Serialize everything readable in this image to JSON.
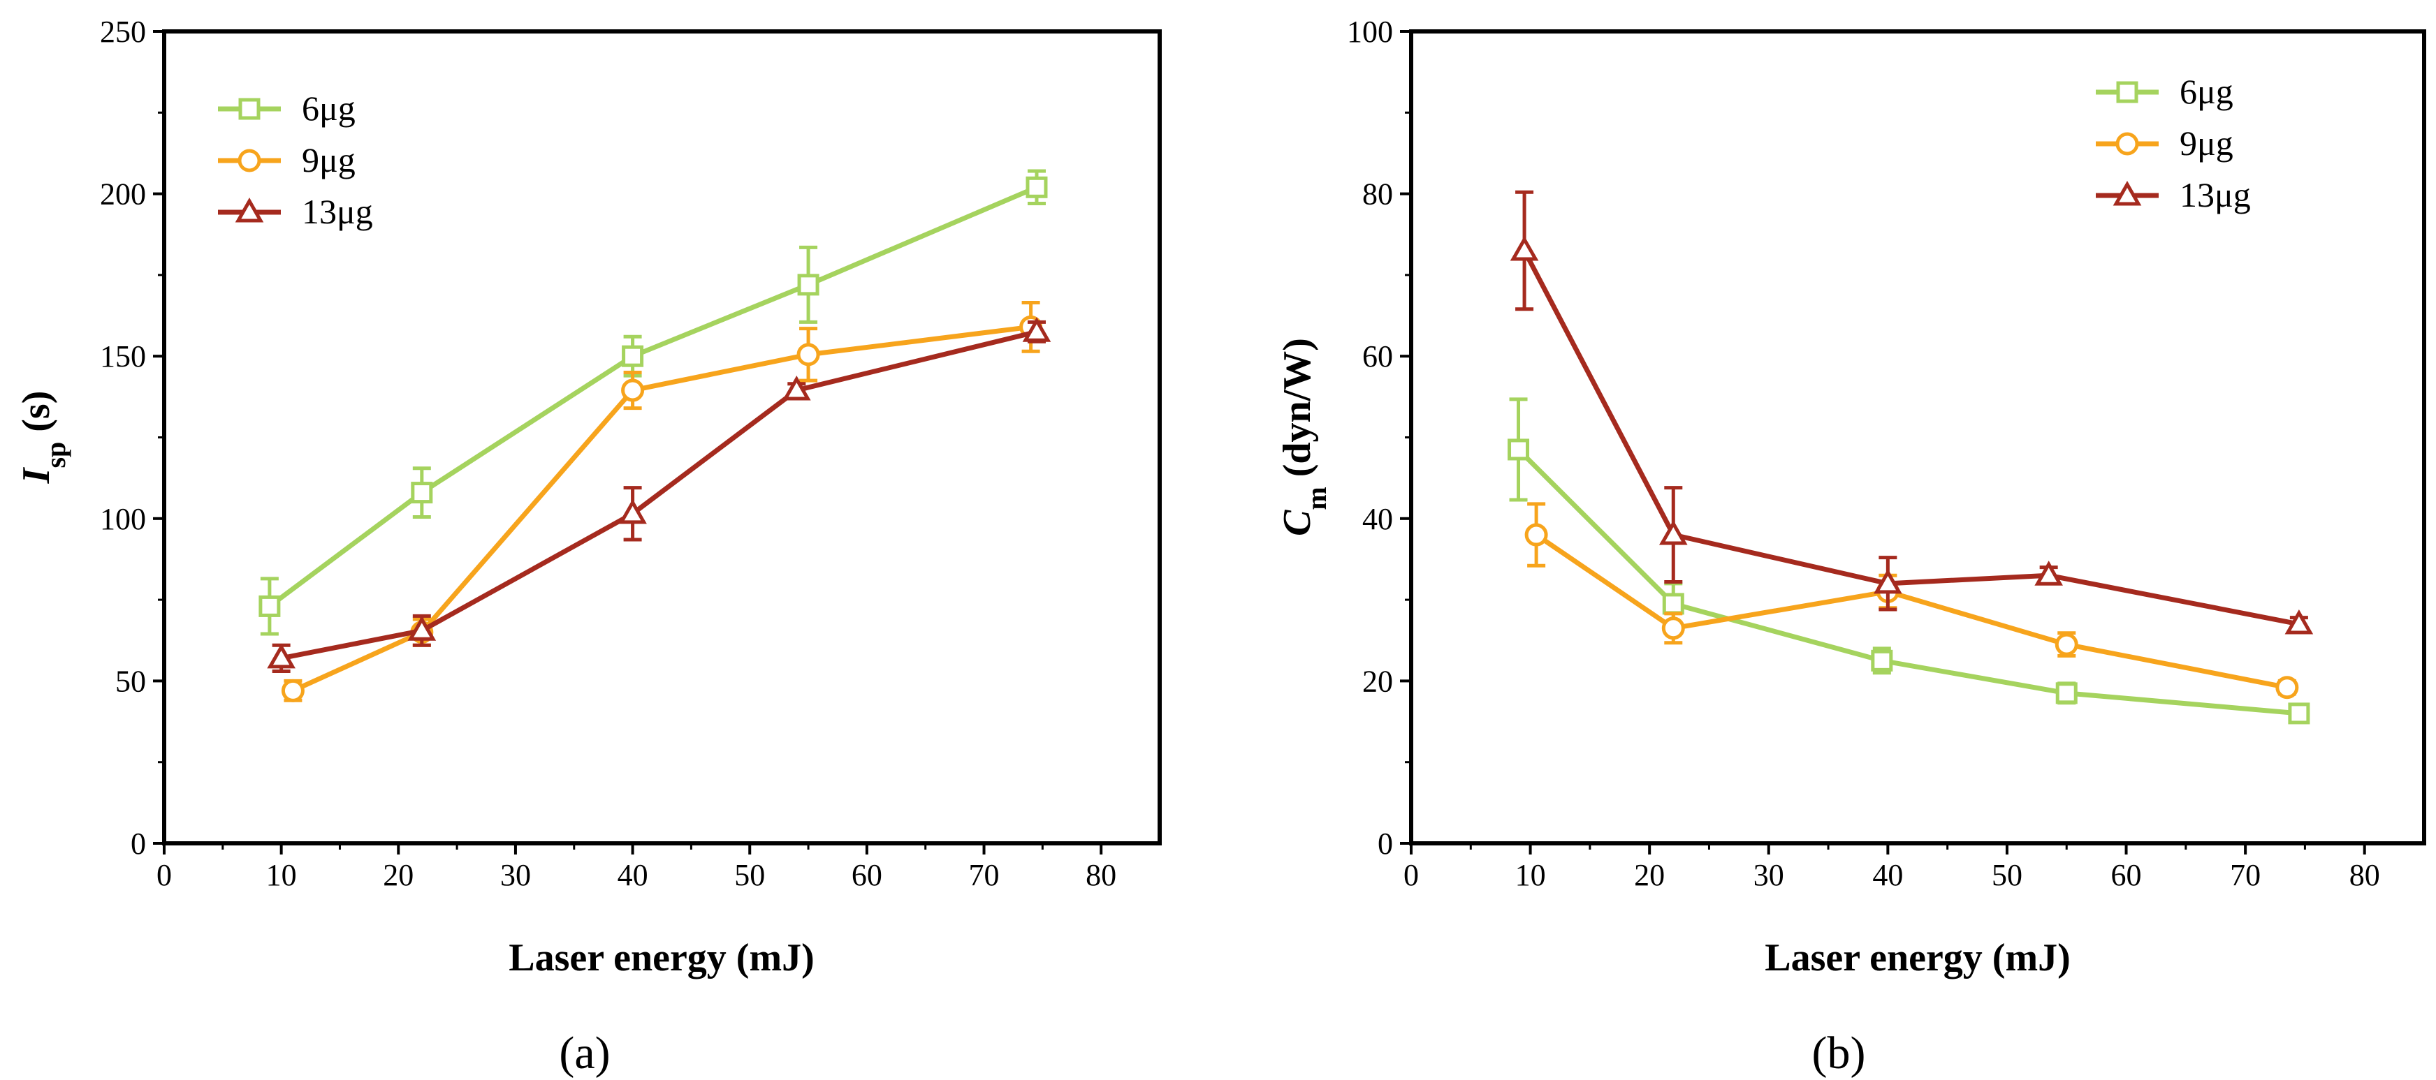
{
  "chart_data": [
    {
      "type": "line",
      "panel_label": "(a)",
      "xlabel": "Laser  energy (mJ)",
      "ylabel_main": "I",
      "ylabel_sub": "sp",
      "ylabel_unit": "(s)",
      "xlim": [
        0,
        85
      ],
      "ylim": [
        0,
        250
      ],
      "xticks": [
        0,
        10,
        20,
        30,
        40,
        50,
        60,
        70,
        80
      ],
      "yticks": [
        0,
        50,
        100,
        150,
        200,
        250
      ],
      "legend_position": "top-left",
      "series": [
        {
          "name": "6μg",
          "color": "#a5d35e",
          "marker": "square",
          "x": [
            9,
            22,
            40,
            55,
            74.5
          ],
          "y": [
            73,
            108,
            150,
            172,
            202
          ],
          "err": [
            8.5,
            7.5,
            6,
            11.5,
            5
          ]
        },
        {
          "name": "9μg",
          "color": "#f7a41c",
          "marker": "circle",
          "x": [
            11,
            22,
            40,
            55,
            74
          ],
          "y": [
            47,
            65,
            139.5,
            150.5,
            159
          ],
          "err": [
            3,
            4,
            5.5,
            8,
            7.5
          ]
        },
        {
          "name": "13μg",
          "color": "#a52a1e",
          "marker": "triangle",
          "x": [
            10,
            22,
            40,
            54,
            74.5
          ],
          "y": [
            57,
            65.5,
            101.5,
            139.5,
            157.5
          ],
          "err": [
            4,
            4.5,
            8,
            2,
            3
          ]
        }
      ]
    },
    {
      "type": "line",
      "panel_label": "(b)",
      "xlabel": "Laser  energy (mJ)",
      "ylabel_main": "C",
      "ylabel_sub": "m",
      "ylabel_unit": "(dyn/W)",
      "xlim": [
        0,
        85
      ],
      "ylim": [
        0,
        100
      ],
      "xticks": [
        0,
        10,
        20,
        30,
        40,
        50,
        60,
        70,
        80
      ],
      "yticks": [
        0,
        20,
        40,
        60,
        80,
        100
      ],
      "legend_position": "top-right",
      "series": [
        {
          "name": "6μg",
          "color": "#a5d35e",
          "marker": "square",
          "x": [
            9,
            22,
            39.5,
            55,
            74.5
          ],
          "y": [
            48.5,
            29.5,
            22.5,
            18.5,
            16
          ],
          "err": [
            6.2,
            2.5,
            1.5,
            1.2,
            0.8
          ]
        },
        {
          "name": "9μg",
          "color": "#f7a41c",
          "marker": "circle",
          "x": [
            10.5,
            22,
            40,
            55,
            73.5
          ],
          "y": [
            38,
            26.5,
            31,
            24.5,
            19.2
          ],
          "err": [
            3.8,
            1.8,
            2,
            1.4,
            0.8
          ]
        },
        {
          "name": "13μg",
          "color": "#a52a1e",
          "marker": "triangle",
          "x": [
            9.5,
            22,
            40,
            53.5,
            74.5
          ],
          "y": [
            73,
            38,
            32,
            33,
            27
          ],
          "err": [
            7.2,
            5.8,
            3.2,
            1,
            0.8
          ]
        }
      ]
    }
  ]
}
